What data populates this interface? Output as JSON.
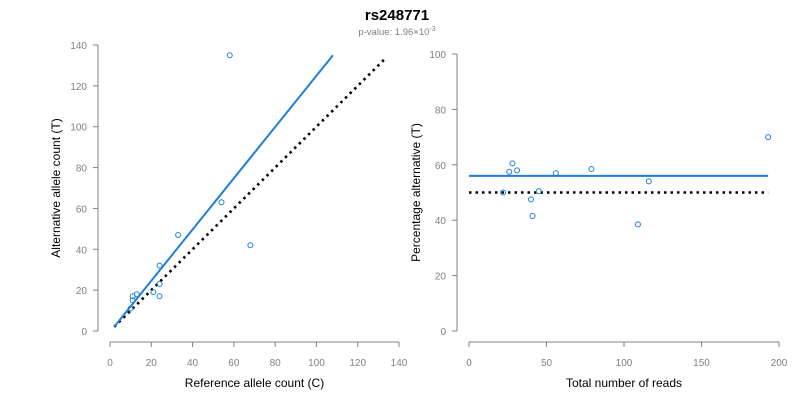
{
  "header": {
    "title": "rs248771",
    "pvalue_prefix": "p-value: 1.96×10",
    "pvalue_exponent": "-3"
  },
  "colors": {
    "accent": "#1f7fd9",
    "reference_line": "#000000",
    "axis": "#808080"
  },
  "chart_data": [
    {
      "type": "scatter",
      "xlabel": "Reference allele count (C)",
      "ylabel": "Alternative allele count (T)",
      "xlim": [
        0,
        140
      ],
      "ylim": [
        0,
        140
      ],
      "xticks": [
        "0",
        "20",
        "40",
        "60",
        "80",
        "100",
        "120",
        "140"
      ],
      "yticks": [
        "0",
        "20",
        "40",
        "60",
        "80",
        "100",
        "120",
        "140"
      ],
      "grid": false,
      "points": [
        {
          "x": 10,
          "y": 11
        },
        {
          "x": 11,
          "y": 15
        },
        {
          "x": 11,
          "y": 17
        },
        {
          "x": 13,
          "y": 18
        },
        {
          "x": 21,
          "y": 19
        },
        {
          "x": 24,
          "y": 32
        },
        {
          "x": 24,
          "y": 17
        },
        {
          "x": 24,
          "y": 23
        },
        {
          "x": 33,
          "y": 47
        },
        {
          "x": 54,
          "y": 63
        },
        {
          "x": 58,
          "y": 135
        },
        {
          "x": 68,
          "y": 42
        }
      ],
      "fit_line": {
        "x": [
          2,
          108
        ],
        "y": [
          2,
          135
        ]
      },
      "reference_line": {
        "x": [
          2,
          134
        ],
        "y": [
          2,
          134
        ]
      }
    },
    {
      "type": "scatter",
      "xlabel": "Total number of reads",
      "ylabel": "Percentage alternative (T)",
      "xlim": [
        0,
        200
      ],
      "ylim": [
        0,
        100
      ],
      "xticks": [
        "0",
        "50",
        "100",
        "150",
        "200"
      ],
      "yticks": [
        "0",
        "20",
        "40",
        "60",
        "80",
        "100"
      ],
      "grid": false,
      "points": [
        {
          "x": 22,
          "y": 50
        },
        {
          "x": 26,
          "y": 57.5
        },
        {
          "x": 28,
          "y": 60.5
        },
        {
          "x": 31,
          "y": 58
        },
        {
          "x": 40,
          "y": 47.5
        },
        {
          "x": 41,
          "y": 41.5
        },
        {
          "x": 45,
          "y": 50.5
        },
        {
          "x": 56,
          "y": 57
        },
        {
          "x": 79,
          "y": 58.5
        },
        {
          "x": 109,
          "y": 38.5
        },
        {
          "x": 116,
          "y": 54
        },
        {
          "x": 193,
          "y": 70
        }
      ],
      "fit_line": {
        "x": [
          0,
          193
        ],
        "y": [
          56,
          56
        ]
      },
      "reference_line": {
        "x": [
          0,
          193
        ],
        "y": [
          50,
          50
        ]
      }
    }
  ]
}
